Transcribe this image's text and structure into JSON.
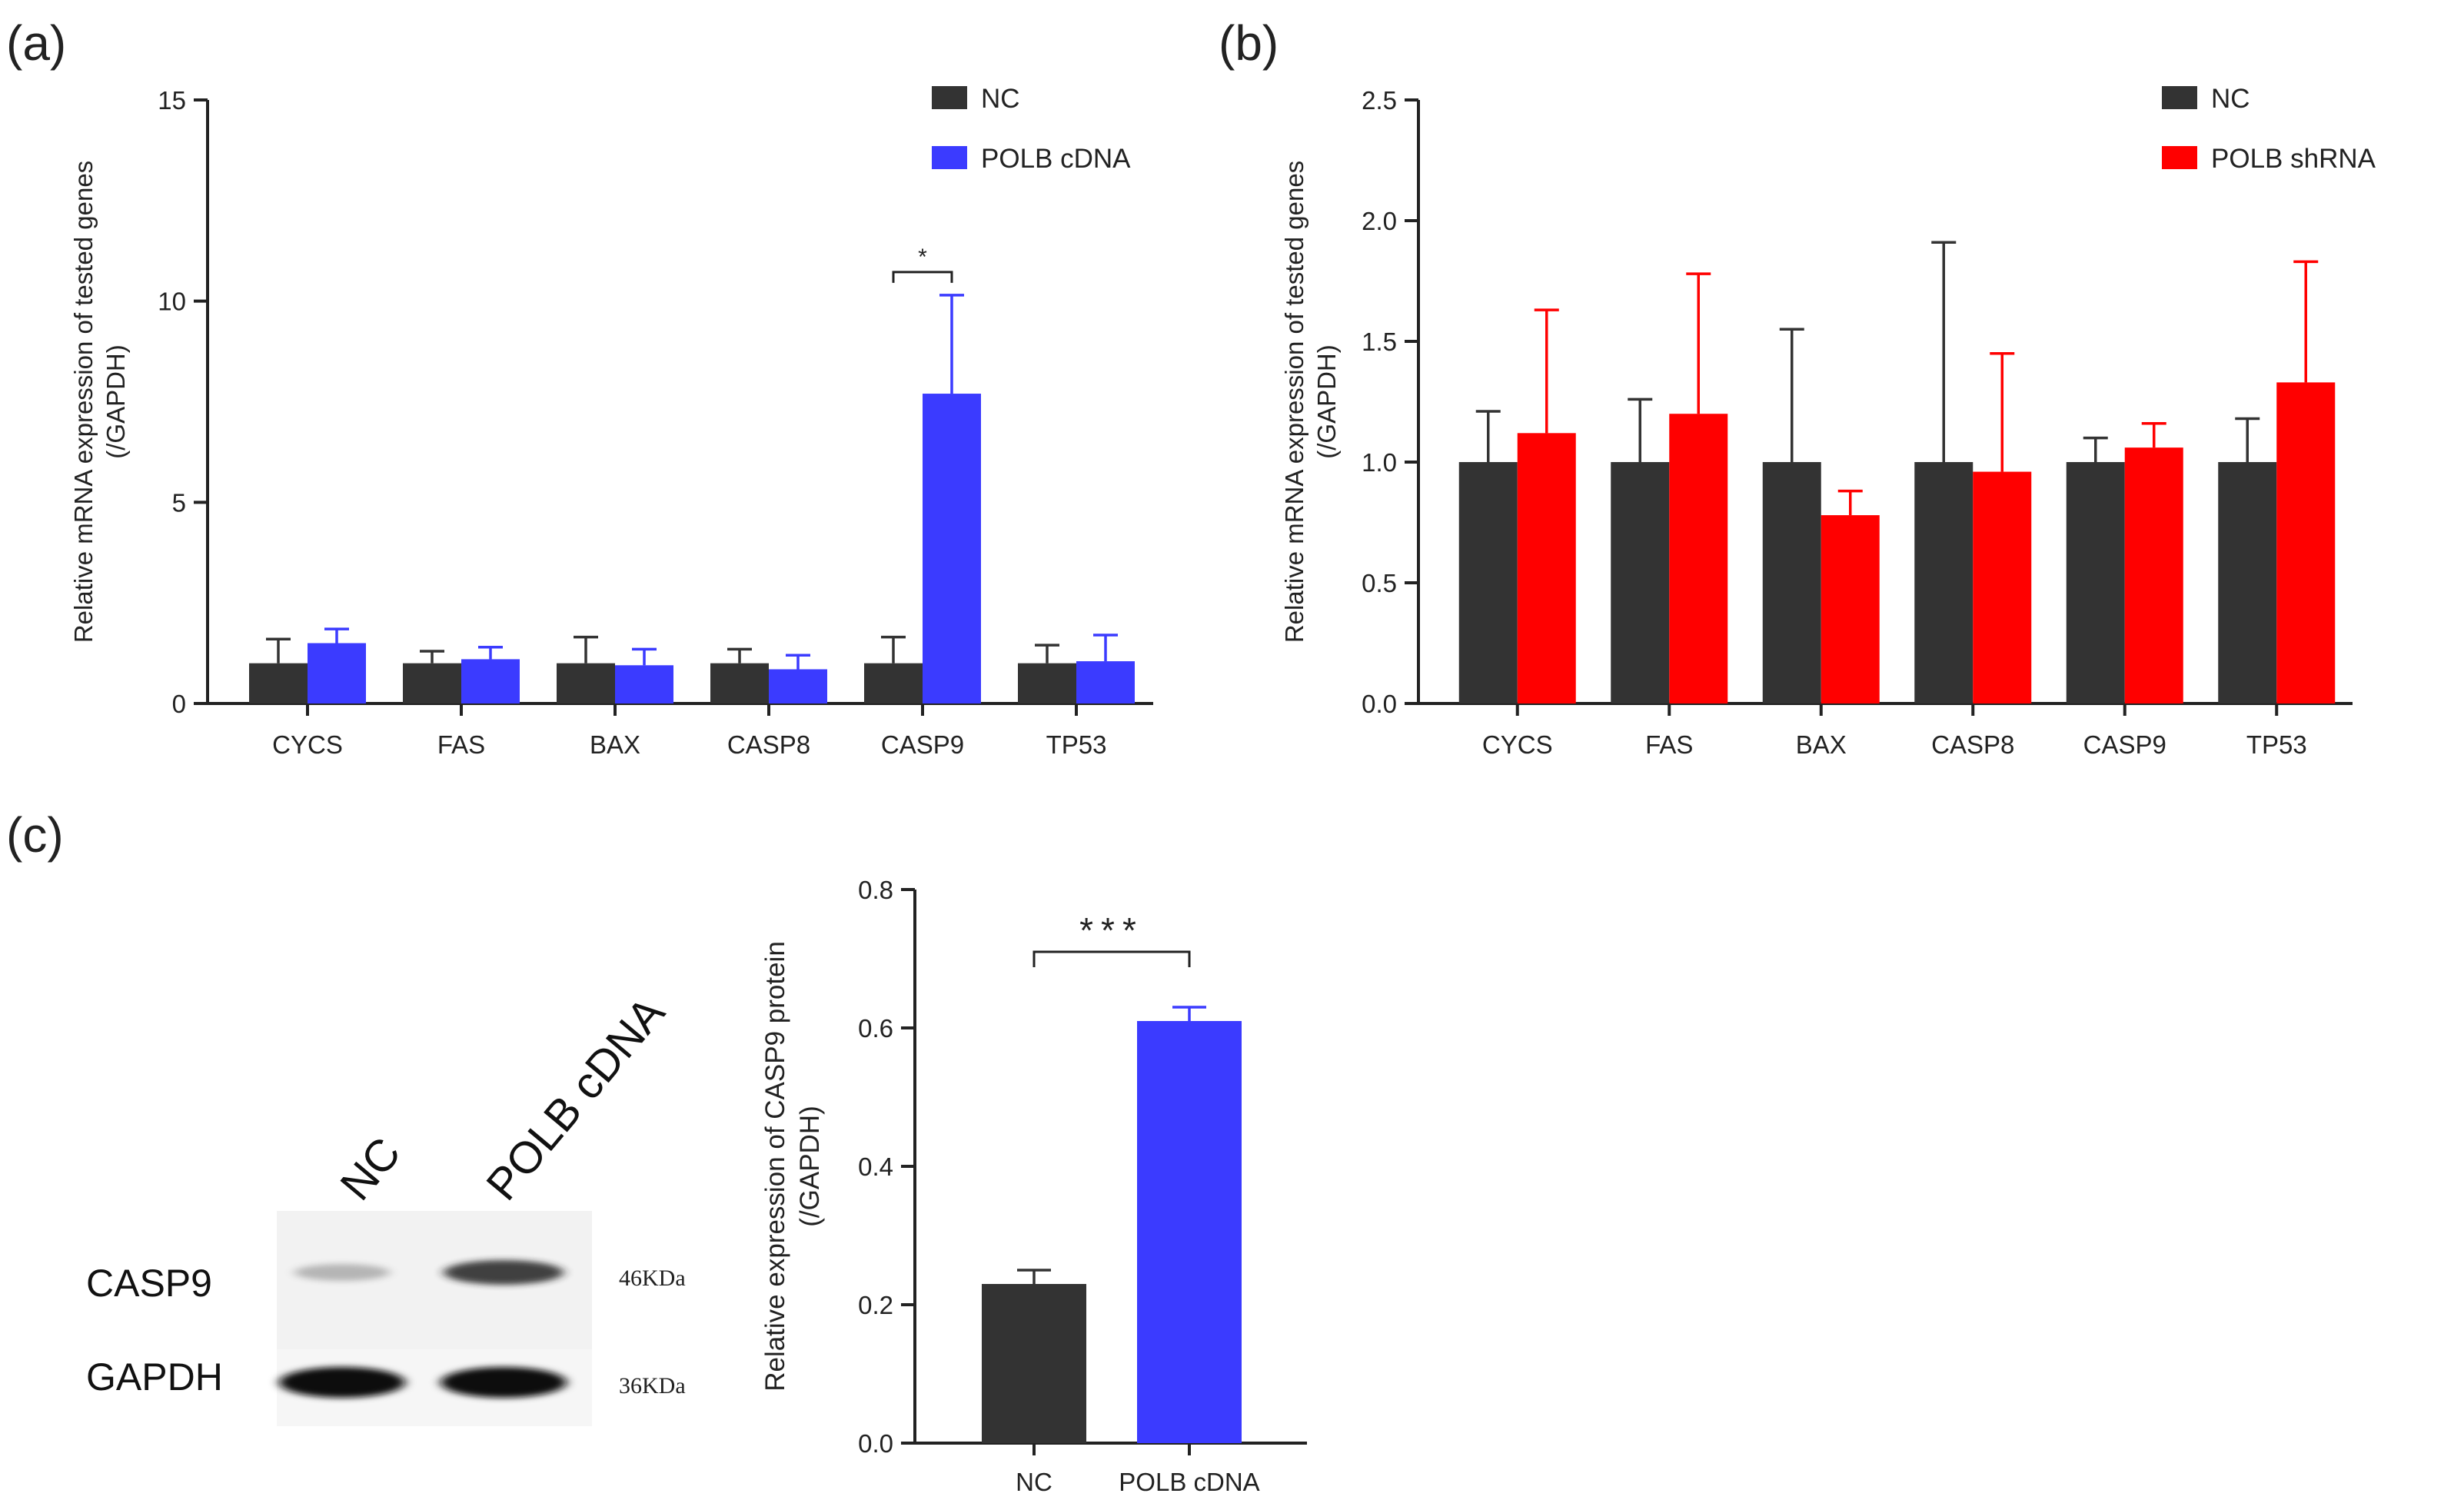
{
  "panel_labels": {
    "a": "(a)",
    "b": "(b)",
    "c": "(c)"
  },
  "colors": {
    "nc": "#333333",
    "polb_cdna": "#3b3bff",
    "polb_shrna": "#ff0000",
    "axis": "#222222"
  },
  "chart_data": [
    {
      "id": "a",
      "type": "bar",
      "categories": [
        "CYCS",
        "FAS",
        "BAX",
        "CASP8",
        "CASP9",
        "TP53"
      ],
      "ylabel": "Relative mRNA expression of tested genes",
      "ylabel2": "(/GAPDH)",
      "ylim": [
        0,
        15
      ],
      "yticks": [
        0,
        5,
        10,
        15
      ],
      "ytick_labels": [
        "0",
        "5",
        "10",
        "15"
      ],
      "legend_position": "top-right",
      "series": [
        {
          "name": "NC",
          "color": "#333333",
          "values": [
            1.0,
            1.0,
            1.0,
            1.0,
            1.0,
            1.0
          ],
          "errors": [
            0.6,
            0.3,
            0.65,
            0.35,
            0.65,
            0.45
          ]
        },
        {
          "name": "POLB cDNA",
          "color": "#3b3bff",
          "values": [
            1.5,
            1.1,
            0.95,
            0.85,
            7.7,
            1.05
          ],
          "errors": [
            0.35,
            0.3,
            0.4,
            0.35,
            2.45,
            0.65
          ]
        }
      ],
      "significance": [
        {
          "category": "CASP9",
          "label": "*"
        }
      ]
    },
    {
      "id": "b",
      "type": "bar",
      "categories": [
        "CYCS",
        "FAS",
        "BAX",
        "CASP8",
        "CASP9",
        "TP53"
      ],
      "ylabel": "Relative mRNA expression of tested genes",
      "ylabel2": "(/GAPDH)",
      "ylim": [
        0,
        2.5
      ],
      "yticks": [
        0,
        0.5,
        1.0,
        1.5,
        2.0,
        2.5
      ],
      "ytick_labels": [
        "0.0",
        "0.5",
        "1.0",
        "1.5",
        "2.0",
        "2.5"
      ],
      "legend_position": "top-right",
      "series": [
        {
          "name": "NC",
          "color": "#333333",
          "values": [
            1.0,
            1.0,
            1.0,
            1.0,
            1.0,
            1.0
          ],
          "errors": [
            0.21,
            0.26,
            0.55,
            0.91,
            0.1,
            0.18
          ]
        },
        {
          "name": "POLB shRNA",
          "color": "#ff0000",
          "values": [
            1.12,
            1.2,
            0.78,
            0.96,
            1.06,
            1.33
          ],
          "errors": [
            0.51,
            0.58,
            0.1,
            0.49,
            0.1,
            0.5
          ]
        }
      ]
    },
    {
      "id": "c",
      "type": "bar",
      "categories": [
        "NC",
        "POLB cDNA"
      ],
      "ylabel": "Relative expression of CASP9 protein",
      "ylabel2": "(/GAPDH)",
      "ylim": [
        0,
        0.8
      ],
      "yticks": [
        0,
        0.2,
        0.4,
        0.6,
        0.8
      ],
      "ytick_labels": [
        "0.0",
        "0.2",
        "0.4",
        "0.6",
        "0.8"
      ],
      "series": [
        {
          "name": "",
          "colors": [
            "#333333",
            "#3b3bff"
          ],
          "values": [
            0.23,
            0.61
          ],
          "errors": [
            0.02,
            0.02
          ]
        }
      ],
      "significance": [
        {
          "between": [
            "NC",
            "POLB cDNA"
          ],
          "label": "***"
        }
      ]
    }
  ],
  "western_blot": {
    "lane_labels": [
      "NC",
      "POLB cDNA"
    ],
    "rows": [
      {
        "protein": "CASP9",
        "size": "46KDa",
        "intensities": [
          0.35,
          0.85
        ]
      },
      {
        "protein": "GAPDH",
        "size": "36KDa",
        "intensities": [
          1.0,
          1.0
        ]
      }
    ]
  }
}
